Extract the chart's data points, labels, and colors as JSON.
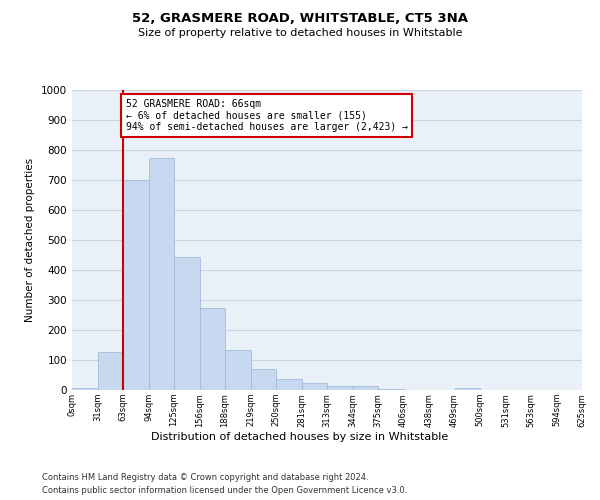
{
  "title": "52, GRASMERE ROAD, WHITSTABLE, CT5 3NA",
  "subtitle": "Size of property relative to detached houses in Whitstable",
  "xlabel": "Distribution of detached houses by size in Whitstable",
  "ylabel": "Number of detached properties",
  "footer_line1": "Contains HM Land Registry data © Crown copyright and database right 2024.",
  "footer_line2": "Contains public sector information licensed under the Open Government Licence v3.0.",
  "bar_values": [
    8,
    128,
    700,
    775,
    443,
    275,
    133,
    70,
    38,
    25,
    13,
    13,
    5,
    0,
    0,
    8,
    0,
    0,
    0,
    0
  ],
  "bar_labels": [
    "0sqm",
    "31sqm",
    "63sqm",
    "94sqm",
    "125sqm",
    "156sqm",
    "188sqm",
    "219sqm",
    "250sqm",
    "281sqm",
    "313sqm",
    "344sqm",
    "375sqm",
    "406sqm",
    "438sqm",
    "469sqm",
    "500sqm",
    "531sqm",
    "563sqm",
    "594sqm",
    "625sqm"
  ],
  "bar_color": "#c6d9f0",
  "bar_edge_color": "#9ab5d8",
  "grid_color": "#c8d4e4",
  "bg_color": "#eaf0f8",
  "property_line_color": "#cc0000",
  "annotation_text": "52 GRASMERE ROAD: 66sqm\n← 6% of detached houses are smaller (155)\n94% of semi-detached houses are larger (2,423) →",
  "annotation_box_color": "#cc0000",
  "ylim": [
    0,
    1000
  ],
  "yticks": [
    0,
    100,
    200,
    300,
    400,
    500,
    600,
    700,
    800,
    900,
    1000
  ]
}
